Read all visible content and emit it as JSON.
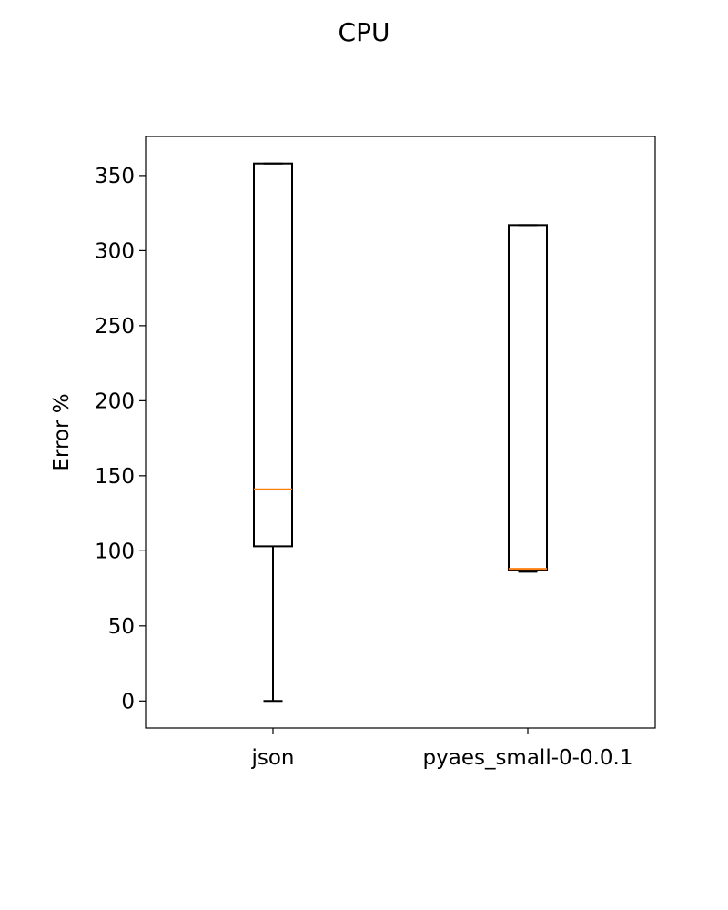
{
  "chart_data": {
    "type": "box",
    "title": "CPU",
    "xlabel": "",
    "ylabel": "Error %",
    "ylim": [
      -18,
      376
    ],
    "yticks": [
      0,
      50,
      100,
      150,
      200,
      250,
      300,
      350
    ],
    "categories": [
      "json",
      "pyaes_small-0-0.0.1"
    ],
    "boxes": [
      {
        "category": "json",
        "whisker_low": 0,
        "q1": 103,
        "median": 141,
        "q3": 358,
        "whisker_high": 358
      },
      {
        "category": "pyaes_small-0-0.0.1",
        "whisker_low": 86,
        "q1": 87,
        "median": 88,
        "q3": 317,
        "whisker_high": 317
      }
    ],
    "grid": false,
    "colors": {
      "box": "#000000",
      "median": "#ff7f0e"
    }
  }
}
